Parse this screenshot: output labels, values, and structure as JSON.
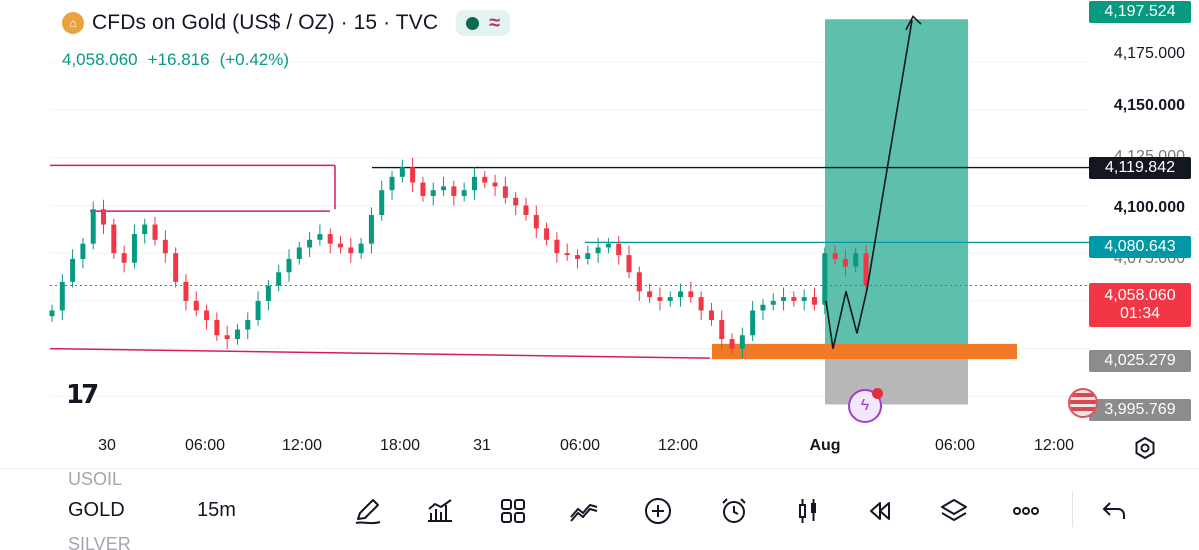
{
  "header": {
    "title": "CFDs on Gold (US$ / OZ) · 15 · TVC",
    "price": "4,058.060",
    "change": "+16.816",
    "change_pct": "(+0.42%)"
  },
  "price_axis": {
    "ticks": [
      "4,175.000",
      "4,150.000",
      "4,125.000",
      "4,100.000",
      "4,075.000"
    ],
    "labels": {
      "top_target": "4,197.524",
      "resistance": "4,119.842",
      "level_mid": "4,080.643",
      "current": "4,058.060",
      "countdown": "01:34",
      "stop": "4,025.279",
      "bottom": "3,995.769"
    }
  },
  "time_axis": [
    "30",
    "06:00",
    "12:00",
    "18:00",
    "31",
    "06:00",
    "12:00",
    "Aug",
    "06:00",
    "12:00"
  ],
  "chart_data": {
    "type": "candlestick",
    "symbol": "GOLD",
    "interval": "15",
    "current_price": 4058.06,
    "levels": [
      4197.524,
      4119.842,
      4080.643,
      4058.06,
      4025.279,
      3995.769
    ],
    "long_position": {
      "entry": 4025.279,
      "target": 4197.524,
      "stop": 3995.769
    },
    "ylim": [
      3985,
      4205
    ],
    "close_path": [
      4045,
      4060,
      4072,
      4080,
      4098,
      4090,
      4075,
      4070,
      4085,
      4090,
      4082,
      4075,
      4060,
      4050,
      4045,
      4040,
      4032,
      4030,
      4035,
      4040,
      4050,
      4058,
      4065,
      4072,
      4078,
      4082,
      4085,
      4080,
      4078,
      4075,
      4080,
      4095,
      4108,
      4115,
      4120,
      4112,
      4105,
      4108,
      4110,
      4105,
      4108,
      4115,
      4112,
      4110,
      4104,
      4100,
      4095,
      4088,
      4082,
      4075,
      4074,
      4072,
      4075,
      4078,
      4080,
      4074,
      4065,
      4055,
      4052,
      4050,
      4052,
      4055,
      4052,
      4045,
      4040,
      4030,
      4025,
      4032,
      4045,
      4048,
      4050,
      4052,
      4050,
      4052,
      4048,
      4075,
      4072,
      4068,
      4075,
      4058
    ]
  },
  "toolbar": {
    "symbol_prev": "USOIL",
    "symbol": "GOLD",
    "symbol_next": "SILVER",
    "interval": "15m"
  },
  "colors": {
    "up": "#089981",
    "down": "#f23645",
    "profit_zone": "#5cc0ac",
    "loss_zone": "#b7b7b7",
    "orange_zone": "#f07a25",
    "magenta_line": "#d81b60",
    "teal_line": "#0097a7"
  }
}
